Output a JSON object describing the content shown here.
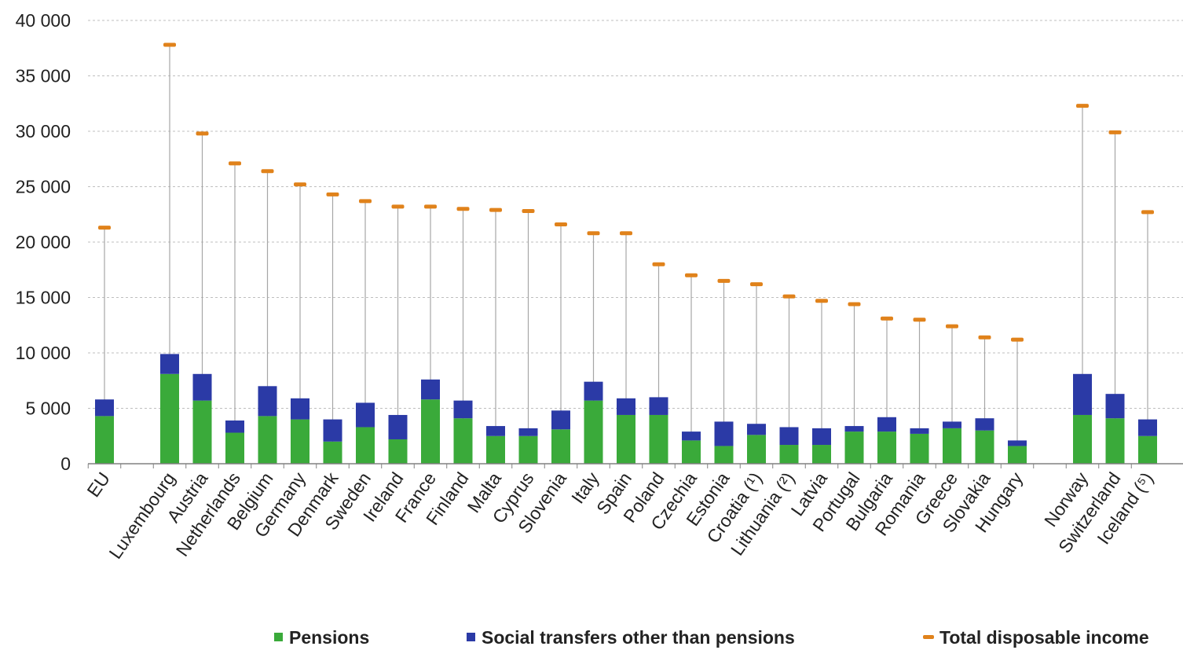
{
  "chart_data": {
    "type": "bar",
    "stacked": true,
    "ylim": [
      0,
      40000
    ],
    "yticks": [
      "0",
      "5 000",
      "10 000",
      "15 000",
      "20 000",
      "25 000",
      "30 000",
      "35 000",
      "40 000"
    ],
    "grid": true,
    "legend_position": "bottom",
    "colors": {
      "pensions": "#3aaa3a",
      "social": "#2b3aa6",
      "total": "#e0821b",
      "whisker": "#a6a6a6",
      "grid": "#bfbfbf",
      "axis": "#808080"
    },
    "categories": [
      "EU",
      "",
      "Luxembourg",
      "Austria",
      "Netherlands",
      "Belgium",
      "Germany",
      "Denmark",
      "Sweden",
      "Ireland",
      "France",
      "Finland",
      "Malta",
      "Cyprus",
      "Slovenia",
      "Italy",
      "Spain",
      "Poland",
      "Czechia",
      "Estonia",
      "Croatia (¹)",
      "Lithuania (²)",
      "Latvia",
      "Portugal",
      "Bulgaria",
      "Romania",
      "Greece",
      "Slovakia",
      "Hungary",
      "",
      "Norway",
      "Switzerland",
      "Iceland (⁵)"
    ],
    "series": [
      {
        "name": "Pensions",
        "kind": "bar",
        "values": [
          4300,
          null,
          8100,
          5700,
          2800,
          4300,
          4000,
          2000,
          3300,
          2200,
          5800,
          4100,
          2500,
          2500,
          3100,
          5700,
          4400,
          4400,
          2100,
          1600,
          2600,
          1700,
          1700,
          2900,
          2900,
          2700,
          3200,
          3000,
          1600,
          null,
          4400,
          4100,
          2500
        ]
      },
      {
        "name": "Social transfers other than pensions",
        "kind": "bar",
        "values": [
          1500,
          null,
          1800,
          2400,
          1100,
          2700,
          1900,
          2000,
          2200,
          2200,
          1800,
          1600,
          900,
          700,
          1700,
          1700,
          1500,
          1600,
          800,
          2200,
          1000,
          1600,
          1500,
          500,
          1300,
          500,
          600,
          1100,
          500,
          null,
          3700,
          2200,
          1500
        ]
      },
      {
        "name": "Total disposable income",
        "kind": "marker",
        "values": [
          21300,
          null,
          37800,
          29800,
          27100,
          26400,
          25200,
          24300,
          23700,
          23200,
          23200,
          23000,
          22900,
          22800,
          21600,
          20800,
          20800,
          18000,
          17000,
          16500,
          16200,
          15100,
          14700,
          14400,
          13100,
          13000,
          12400,
          11400,
          11200,
          null,
          32300,
          29900,
          22700
        ]
      }
    ],
    "legend": [
      "Pensions",
      "Social transfers other than pensions",
      "Total disposable income"
    ]
  }
}
